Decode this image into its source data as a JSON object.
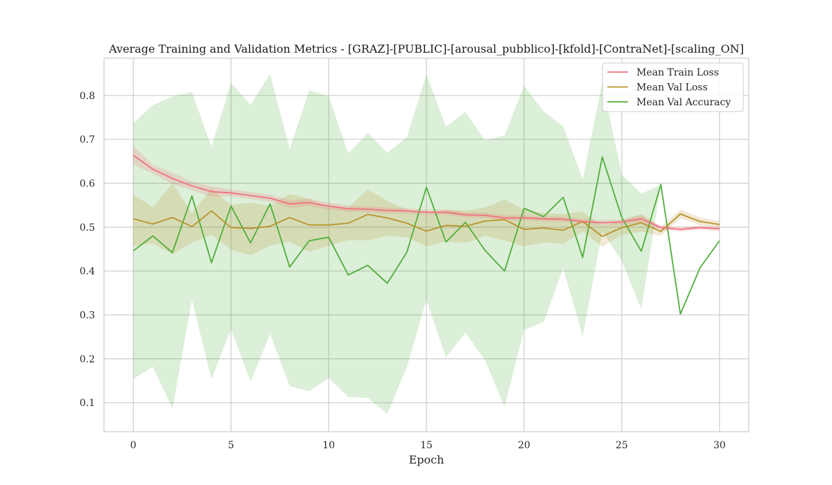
{
  "chart_data": {
    "type": "line",
    "title": "Average Training and Validation Metrics - [GRAZ]-[PUBLIC]-[arousal_pubblico]-[kfold]-[ContraNet]-[scaling_ON]",
    "xlabel": "Epoch",
    "ylabel": "",
    "xlim": [
      -1.5,
      31.5
    ],
    "ylim": [
      0.034,
      0.885
    ],
    "xticks": [
      0,
      5,
      10,
      15,
      20,
      25,
      30
    ],
    "yticks": [
      0.1,
      0.2,
      0.3,
      0.4,
      0.5,
      0.6,
      0.7,
      0.8
    ],
    "grid": true,
    "legend_position": "top-right",
    "x": [
      0,
      1,
      2,
      3,
      4,
      5,
      6,
      7,
      8,
      9,
      10,
      11,
      12,
      13,
      14,
      15,
      16,
      17,
      18,
      19,
      20,
      21,
      22,
      23,
      24,
      25,
      26,
      27,
      28,
      29,
      30
    ],
    "series": [
      {
        "name": "Mean Train Loss",
        "color": "#f0707f",
        "values": [
          0.664,
          0.632,
          0.611,
          0.594,
          0.581,
          0.578,
          0.572,
          0.566,
          0.553,
          0.556,
          0.548,
          0.542,
          0.541,
          0.538,
          0.537,
          0.534,
          0.534,
          0.528,
          0.527,
          0.521,
          0.521,
          0.519,
          0.518,
          0.513,
          0.51,
          0.512,
          0.519,
          0.499,
          0.495,
          0.499,
          0.496
        ],
        "upper": [
          0.685,
          0.642,
          0.624,
          0.604,
          0.593,
          0.586,
          0.58,
          0.574,
          0.562,
          0.564,
          0.556,
          0.549,
          0.548,
          0.545,
          0.543,
          0.54,
          0.54,
          0.534,
          0.533,
          0.527,
          0.527,
          0.525,
          0.524,
          0.519,
          0.516,
          0.518,
          0.527,
          0.504,
          0.5,
          0.504,
          0.501
        ],
        "lower": [
          0.643,
          0.622,
          0.598,
          0.584,
          0.569,
          0.57,
          0.564,
          0.558,
          0.544,
          0.548,
          0.54,
          0.535,
          0.534,
          0.531,
          0.531,
          0.528,
          0.528,
          0.522,
          0.521,
          0.515,
          0.515,
          0.513,
          0.512,
          0.507,
          0.504,
          0.506,
          0.511,
          0.494,
          0.49,
          0.494,
          0.491
        ]
      },
      {
        "name": "Mean Val Loss",
        "color": "#b8922c",
        "values": [
          0.519,
          0.507,
          0.522,
          0.501,
          0.537,
          0.499,
          0.497,
          0.502,
          0.522,
          0.505,
          0.505,
          0.509,
          0.529,
          0.521,
          0.509,
          0.491,
          0.504,
          0.502,
          0.514,
          0.517,
          0.495,
          0.498,
          0.493,
          0.513,
          0.479,
          0.499,
          0.51,
          0.49,
          0.53,
          0.513,
          0.506
        ],
        "upper": [
          0.575,
          0.545,
          0.6,
          0.532,
          0.588,
          0.55,
          0.556,
          0.548,
          0.576,
          0.565,
          0.545,
          0.545,
          0.586,
          0.56,
          0.54,
          0.53,
          0.54,
          0.538,
          0.545,
          0.563,
          0.54,
          0.532,
          0.53,
          0.535,
          0.503,
          0.515,
          0.53,
          0.5,
          0.54,
          0.522,
          0.514
        ],
        "lower": [
          0.457,
          0.463,
          0.438,
          0.465,
          0.482,
          0.449,
          0.436,
          0.458,
          0.467,
          0.444,
          0.458,
          0.47,
          0.47,
          0.48,
          0.477,
          0.456,
          0.468,
          0.464,
          0.48,
          0.47,
          0.456,
          0.465,
          0.462,
          0.49,
          0.455,
          0.482,
          0.49,
          0.48,
          0.52,
          0.505,
          0.498
        ]
      },
      {
        "name": "Mean Val Accuracy",
        "color": "#4fad3a",
        "values": [
          0.446,
          0.48,
          0.442,
          0.571,
          0.419,
          0.548,
          0.464,
          0.553,
          0.409,
          0.469,
          0.477,
          0.391,
          0.413,
          0.372,
          0.443,
          0.591,
          0.466,
          0.511,
          0.447,
          0.4,
          0.543,
          0.524,
          0.568,
          0.431,
          0.66,
          0.522,
          0.445,
          0.597,
          0.302,
          0.407,
          0.469
        ],
        "upper": [
          0.737,
          0.778,
          0.798,
          0.808,
          0.683,
          0.829,
          0.779,
          0.849,
          0.678,
          0.812,
          0.798,
          0.668,
          0.715,
          0.669,
          0.705,
          0.848,
          0.729,
          0.762,
          0.698,
          0.709,
          0.822,
          0.764,
          0.73,
          0.609,
          0.83,
          0.62,
          0.576,
          0.597,
          0.302,
          0.407,
          0.469
        ],
        "lower": [
          0.154,
          0.182,
          0.086,
          0.334,
          0.154,
          0.267,
          0.148,
          0.257,
          0.138,
          0.126,
          0.156,
          0.113,
          0.111,
          0.074,
          0.181,
          0.334,
          0.203,
          0.26,
          0.196,
          0.091,
          0.266,
          0.284,
          0.406,
          0.252,
          0.49,
          0.423,
          0.313,
          0.597,
          0.302,
          0.407,
          0.469
        ]
      }
    ]
  }
}
